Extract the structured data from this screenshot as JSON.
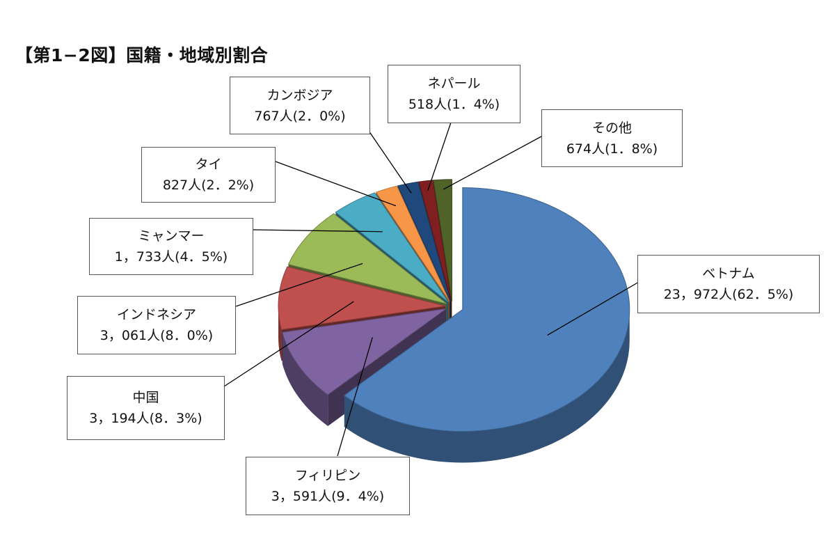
{
  "title": "【第1−2図】国籍・地域別割合",
  "chart_data": {
    "type": "pie",
    "title": "【第1−2図】国籍・地域別割合",
    "series": [
      {
        "label": "ベトナム",
        "value": 23972,
        "value_text": "23，972人",
        "percent": 62.5,
        "percent_text": "(62．5%)",
        "color": "#4f81bd"
      },
      {
        "label": "フィリピン",
        "value": 3591,
        "value_text": "3，591人",
        "percent": 9.4,
        "percent_text": "(9．4%)",
        "color": "#8064a2"
      },
      {
        "label": "中国",
        "value": 3194,
        "value_text": "3，194人",
        "percent": 8.3,
        "percent_text": "(8．3%)",
        "color": "#c0504d"
      },
      {
        "label": "インドネシア",
        "value": 3061,
        "value_text": "3，061人",
        "percent": 8.0,
        "percent_text": "(8．0%)",
        "color": "#9bbb59"
      },
      {
        "label": "ミャンマー",
        "value": 1733,
        "value_text": "1，733人",
        "percent": 4.5,
        "percent_text": "(4．5%)",
        "color": "#4bacc6"
      },
      {
        "label": "タイ",
        "value": 827,
        "value_text": "827人",
        "percent": 2.2,
        "percent_text": "(2．2%)",
        "color": "#f79646"
      },
      {
        "label": "カンボジア",
        "value": 767,
        "value_text": "767人",
        "percent": 2.0,
        "percent_text": "(2．0%)",
        "color": "#1f497d"
      },
      {
        "label": "ネパール",
        "value": 518,
        "value_text": "518人",
        "percent": 1.4,
        "percent_text": "(1．4%)",
        "color": "#7f1f1f"
      },
      {
        "label": "その他",
        "value": 674,
        "value_text": "674人",
        "percent": 1.8,
        "percent_text": "(1．8%)",
        "color": "#4f6228"
      }
    ]
  }
}
